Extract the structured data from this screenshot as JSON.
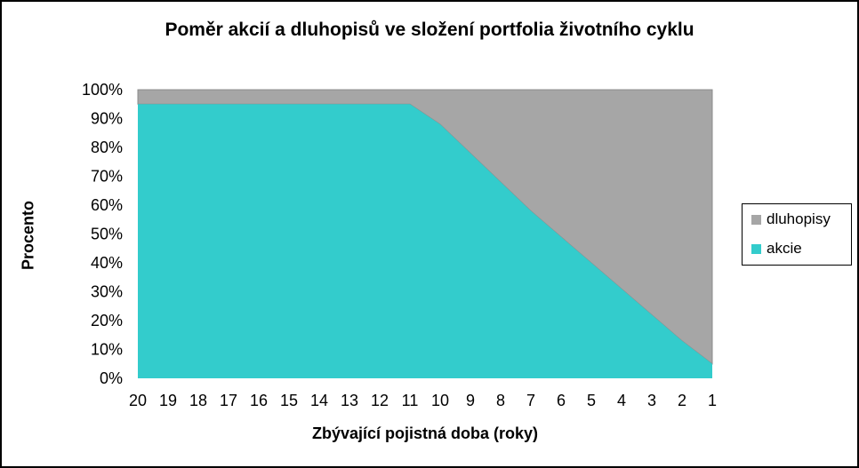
{
  "chart_data": {
    "type": "area",
    "title": "Poměr akcií a dluhopisů ve složení portfolia životního cyklu",
    "xlabel": "Zbývající pojistná doba (roky)",
    "ylabel": "Procento",
    "categories": [
      "20",
      "19",
      "18",
      "17",
      "16",
      "15",
      "14",
      "13",
      "12",
      "11",
      "10",
      "9",
      "8",
      "7",
      "6",
      "5",
      "4",
      "3",
      "2",
      "1"
    ],
    "series": [
      {
        "name": "akcie",
        "color": "#33CCCC",
        "values": [
          95,
          95,
          95,
          95,
          95,
          95,
          95,
          95,
          95,
          95,
          88,
          78,
          68,
          58,
          49,
          40,
          31,
          22,
          13,
          5
        ]
      },
      {
        "name": "dluhopisy",
        "color": "#A6A6A6",
        "values": [
          5,
          5,
          5,
          5,
          5,
          5,
          5,
          5,
          5,
          5,
          12,
          22,
          32,
          42,
          51,
          60,
          69,
          78,
          87,
          95
        ]
      }
    ],
    "stacked": true,
    "ylim": [
      0,
      100
    ],
    "yticks": [
      "0%",
      "10%",
      "20%",
      "30%",
      "40%",
      "50%",
      "60%",
      "70%",
      "80%",
      "90%",
      "100%"
    ],
    "legend_position": "right"
  }
}
